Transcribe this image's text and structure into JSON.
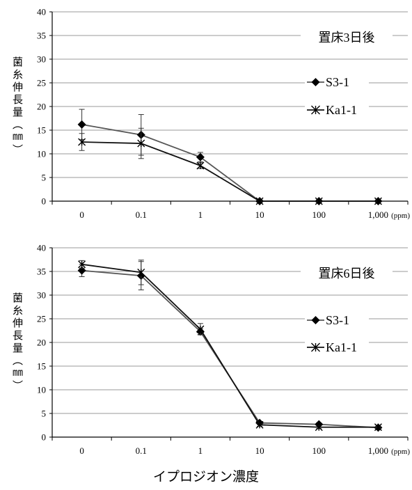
{
  "x_title": "イプロジオン濃度",
  "colors": {
    "S3-1": "#555555",
    "Ka1-1": "#111111",
    "grid": "#9a9a9a",
    "axis": "#000000"
  },
  "chart_data": [
    {
      "type": "line",
      "annotation": "置床3日後",
      "ylabel": "菌糸伸長量（㎜）",
      "ylim": [
        0,
        40
      ],
      "yticks": [
        "0",
        "5",
        "10",
        "15",
        "20",
        "25",
        "30",
        "35",
        "40"
      ],
      "categories": [
        "0",
        "0.1",
        "1",
        "10",
        "100",
        "1,000"
      ],
      "x_unit": "(ppm)",
      "grid": "horizontal",
      "series": [
        {
          "name": "S3-1",
          "marker": "diamond",
          "values": [
            16.2,
            14.0,
            9.3,
            0,
            0,
            0
          ],
          "error": [
            3.2,
            4.3,
            1.0,
            0,
            0,
            0
          ]
        },
        {
          "name": "Ka1-1",
          "marker": "star",
          "values": [
            12.5,
            12.2,
            7.5,
            0,
            0,
            0
          ],
          "error": [
            1.8,
            3.2,
            0.6,
            0,
            0,
            0
          ]
        }
      ]
    },
    {
      "type": "line",
      "annotation": "置床6日後",
      "ylabel": "菌糸伸長量（㎜）",
      "ylim": [
        0,
        40
      ],
      "yticks": [
        "0",
        "5",
        "10",
        "15",
        "20",
        "25",
        "30",
        "35",
        "40"
      ],
      "categories": [
        "0",
        "0.1",
        "1",
        "10",
        "100",
        "1,000"
      ],
      "x_unit": "(ppm)",
      "grid": "horizontal",
      "series": [
        {
          "name": "S3-1",
          "marker": "diamond",
          "values": [
            35.2,
            34.1,
            22.3,
            3.0,
            2.7,
            2.0
          ],
          "error": [
            1.3,
            3.0,
            0.6,
            0.3,
            0.3,
            0.3
          ]
        },
        {
          "name": "Ka1-1",
          "marker": "star",
          "values": [
            36.5,
            34.8,
            22.8,
            2.6,
            2.1,
            2.1
          ],
          "error": [
            0.8,
            2.6,
            1.2,
            0.3,
            0.3,
            0.2
          ]
        }
      ]
    }
  ]
}
